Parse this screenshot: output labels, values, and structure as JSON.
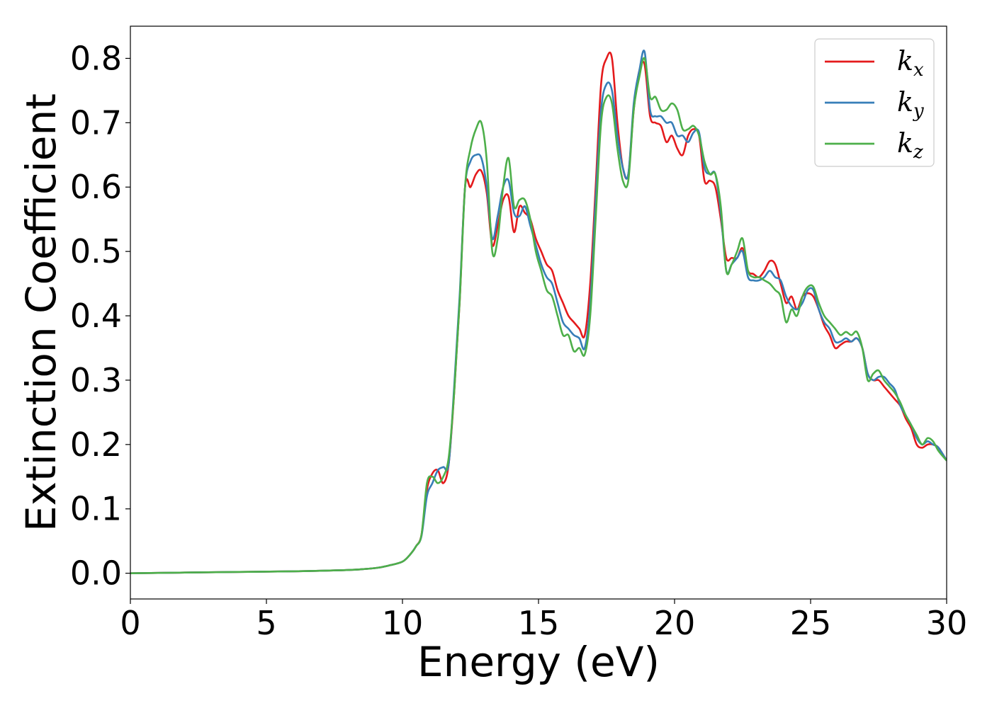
{
  "chart_data": {
    "type": "line",
    "title": "",
    "xlabel": "Energy (eV)",
    "ylabel": "Extinction Coefficient",
    "xlim": [
      0,
      30
    ],
    "ylim": [
      -0.04,
      0.85
    ],
    "xticks": [
      0,
      5,
      10,
      15,
      20,
      25,
      30
    ],
    "xtick_labels": [
      "0",
      "5",
      "10",
      "15",
      "20",
      "25",
      "30"
    ],
    "yticks": [
      0.0,
      0.1,
      0.2,
      0.3,
      0.4,
      0.5,
      0.6,
      0.7,
      0.8
    ],
    "ytick_labels": [
      "0.0",
      "0.1",
      "0.2",
      "0.3",
      "0.4",
      "0.5",
      "0.6",
      "0.7",
      "0.8"
    ],
    "grid": false,
    "legend_position": "top-right",
    "series": [
      {
        "name": "k",
        "subscript": "x",
        "color": "#e41a1c",
        "x": [
          0,
          2,
          4,
          6,
          8,
          9,
          9.5,
          10,
          10.3,
          10.5,
          10.7,
          10.9,
          11.1,
          11.3,
          11.5,
          11.7,
          11.9,
          12.1,
          12.3,
          12.5,
          12.7,
          12.9,
          13.1,
          13.3,
          13.5,
          13.7,
          13.9,
          14.1,
          14.3,
          14.5,
          14.7,
          14.9,
          15.1,
          15.3,
          15.5,
          15.7,
          15.9,
          16.1,
          16.3,
          16.5,
          16.7,
          16.9,
          17.1,
          17.3,
          17.5,
          17.7,
          17.9,
          18.1,
          18.3,
          18.5,
          18.7,
          18.9,
          19.1,
          19.3,
          19.5,
          19.7,
          19.9,
          20.1,
          20.3,
          20.5,
          20.7,
          20.9,
          21.1,
          21.3,
          21.5,
          21.7,
          21.9,
          22.1,
          22.3,
          22.5,
          22.7,
          22.9,
          23.1,
          23.3,
          23.5,
          23.7,
          23.9,
          24.1,
          24.3,
          24.5,
          24.7,
          24.9,
          25.1,
          25.3,
          25.5,
          25.7,
          25.9,
          26.1,
          26.3,
          26.5,
          26.7,
          26.9,
          27.1,
          27.3,
          27.5,
          27.7,
          27.9,
          28.1,
          28.3,
          28.5,
          28.7,
          28.9,
          29.1,
          29.3,
          29.5,
          29.7,
          30
        ],
        "y": [
          0.0,
          0.001,
          0.002,
          0.003,
          0.005,
          0.008,
          0.012,
          0.018,
          0.03,
          0.042,
          0.06,
          0.13,
          0.155,
          0.16,
          0.14,
          0.17,
          0.28,
          0.42,
          0.6,
          0.6,
          0.62,
          0.625,
          0.59,
          0.51,
          0.54,
          0.58,
          0.585,
          0.53,
          0.57,
          0.56,
          0.55,
          0.52,
          0.5,
          0.48,
          0.47,
          0.44,
          0.42,
          0.4,
          0.39,
          0.38,
          0.37,
          0.45,
          0.6,
          0.76,
          0.8,
          0.8,
          0.7,
          0.63,
          0.62,
          0.72,
          0.78,
          0.79,
          0.71,
          0.7,
          0.695,
          0.67,
          0.68,
          0.66,
          0.65,
          0.68,
          0.69,
          0.68,
          0.61,
          0.61,
          0.6,
          0.55,
          0.49,
          0.49,
          0.49,
          0.505,
          0.47,
          0.465,
          0.46,
          0.47,
          0.485,
          0.48,
          0.45,
          0.42,
          0.43,
          0.41,
          0.43,
          0.435,
          0.43,
          0.41,
          0.385,
          0.37,
          0.35,
          0.355,
          0.36,
          0.36,
          0.365,
          0.35,
          0.31,
          0.3,
          0.3,
          0.29,
          0.28,
          0.27,
          0.26,
          0.24,
          0.225,
          0.2,
          0.195,
          0.2,
          0.2,
          0.195,
          0.175
        ]
      },
      {
        "name": "k",
        "subscript": "y",
        "color": "#377eb8",
        "x": [
          0,
          2,
          4,
          6,
          8,
          9,
          9.5,
          10,
          10.3,
          10.5,
          10.7,
          10.9,
          11.1,
          11.3,
          11.5,
          11.7,
          11.9,
          12.1,
          12.3,
          12.5,
          12.7,
          12.9,
          13.1,
          13.3,
          13.5,
          13.7,
          13.9,
          14.1,
          14.3,
          14.5,
          14.7,
          14.9,
          15.1,
          15.3,
          15.5,
          15.7,
          15.9,
          16.1,
          16.3,
          16.5,
          16.7,
          16.9,
          17.1,
          17.3,
          17.5,
          17.7,
          17.9,
          18.1,
          18.3,
          18.5,
          18.7,
          18.9,
          19.1,
          19.3,
          19.5,
          19.7,
          19.9,
          20.1,
          20.3,
          20.5,
          20.7,
          20.9,
          21.1,
          21.3,
          21.5,
          21.7,
          21.9,
          22.1,
          22.3,
          22.5,
          22.7,
          22.9,
          23.1,
          23.3,
          23.5,
          23.7,
          23.9,
          24.1,
          24.3,
          24.5,
          24.7,
          24.9,
          25.1,
          25.3,
          25.5,
          25.7,
          25.9,
          26.1,
          26.3,
          26.5,
          26.7,
          26.9,
          27.1,
          27.3,
          27.5,
          27.7,
          27.9,
          28.1,
          28.3,
          28.5,
          28.7,
          28.9,
          29.1,
          29.3,
          29.5,
          29.7,
          30
        ],
        "y": [
          0.0,
          0.001,
          0.002,
          0.003,
          0.005,
          0.008,
          0.012,
          0.018,
          0.03,
          0.042,
          0.058,
          0.12,
          0.14,
          0.16,
          0.165,
          0.17,
          0.29,
          0.43,
          0.6,
          0.64,
          0.65,
          0.645,
          0.6,
          0.52,
          0.555,
          0.6,
          0.61,
          0.56,
          0.555,
          0.57,
          0.54,
          0.51,
          0.48,
          0.46,
          0.45,
          0.42,
          0.39,
          0.38,
          0.37,
          0.365,
          0.35,
          0.42,
          0.58,
          0.72,
          0.76,
          0.75,
          0.68,
          0.63,
          0.62,
          0.73,
          0.78,
          0.81,
          0.72,
          0.71,
          0.71,
          0.7,
          0.7,
          0.68,
          0.68,
          0.67,
          0.685,
          0.685,
          0.63,
          0.62,
          0.62,
          0.56,
          0.47,
          0.48,
          0.49,
          0.5,
          0.46,
          0.455,
          0.455,
          0.46,
          0.47,
          0.46,
          0.455,
          0.43,
          0.415,
          0.41,
          0.42,
          0.44,
          0.44,
          0.41,
          0.39,
          0.38,
          0.36,
          0.36,
          0.365,
          0.36,
          0.365,
          0.35,
          0.31,
          0.3,
          0.305,
          0.305,
          0.295,
          0.285,
          0.26,
          0.245,
          0.23,
          0.21,
          0.2,
          0.205,
          0.2,
          0.195,
          0.175
        ]
      },
      {
        "name": "k",
        "subscript": "z",
        "color": "#4daf4a",
        "x": [
          0,
          2,
          4,
          6,
          8,
          9,
          9.5,
          10,
          10.3,
          10.5,
          10.7,
          10.9,
          11.1,
          11.3,
          11.5,
          11.7,
          11.9,
          12.1,
          12.3,
          12.5,
          12.7,
          12.9,
          13.1,
          13.3,
          13.5,
          13.7,
          13.9,
          14.1,
          14.3,
          14.5,
          14.7,
          14.9,
          15.1,
          15.3,
          15.5,
          15.7,
          15.9,
          16.1,
          16.3,
          16.5,
          16.7,
          16.9,
          17.1,
          17.3,
          17.5,
          17.7,
          17.9,
          18.1,
          18.3,
          18.5,
          18.7,
          18.9,
          19.1,
          19.3,
          19.5,
          19.7,
          19.9,
          20.1,
          20.3,
          20.5,
          20.7,
          20.9,
          21.1,
          21.3,
          21.5,
          21.7,
          21.9,
          22.1,
          22.3,
          22.5,
          22.7,
          22.9,
          23.1,
          23.3,
          23.5,
          23.7,
          23.9,
          24.1,
          24.3,
          24.5,
          24.7,
          24.9,
          25.1,
          25.3,
          25.5,
          25.7,
          25.9,
          26.1,
          26.3,
          26.5,
          26.7,
          26.9,
          27.1,
          27.3,
          27.5,
          27.7,
          27.9,
          28.1,
          28.3,
          28.5,
          28.7,
          28.9,
          29.1,
          29.3,
          29.5,
          29.7,
          30
        ],
        "y": [
          0.0,
          0.001,
          0.002,
          0.003,
          0.005,
          0.008,
          0.012,
          0.018,
          0.03,
          0.042,
          0.06,
          0.14,
          0.15,
          0.14,
          0.15,
          0.18,
          0.28,
          0.42,
          0.6,
          0.66,
          0.69,
          0.7,
          0.64,
          0.5,
          0.52,
          0.6,
          0.645,
          0.57,
          0.58,
          0.58,
          0.55,
          0.5,
          0.47,
          0.44,
          0.43,
          0.4,
          0.37,
          0.37,
          0.345,
          0.35,
          0.34,
          0.4,
          0.55,
          0.7,
          0.74,
          0.73,
          0.66,
          0.61,
          0.61,
          0.72,
          0.77,
          0.8,
          0.74,
          0.74,
          0.72,
          0.72,
          0.73,
          0.72,
          0.69,
          0.69,
          0.695,
          0.68,
          0.64,
          0.62,
          0.62,
          0.57,
          0.47,
          0.48,
          0.5,
          0.52,
          0.47,
          0.46,
          0.46,
          0.455,
          0.45,
          0.44,
          0.43,
          0.39,
          0.41,
          0.4,
          0.43,
          0.445,
          0.445,
          0.42,
          0.4,
          0.39,
          0.38,
          0.37,
          0.375,
          0.37,
          0.375,
          0.35,
          0.3,
          0.31,
          0.315,
          0.3,
          0.29,
          0.28,
          0.265,
          0.245,
          0.23,
          0.215,
          0.2,
          0.21,
          0.205,
          0.19,
          0.175
        ]
      }
    ]
  }
}
